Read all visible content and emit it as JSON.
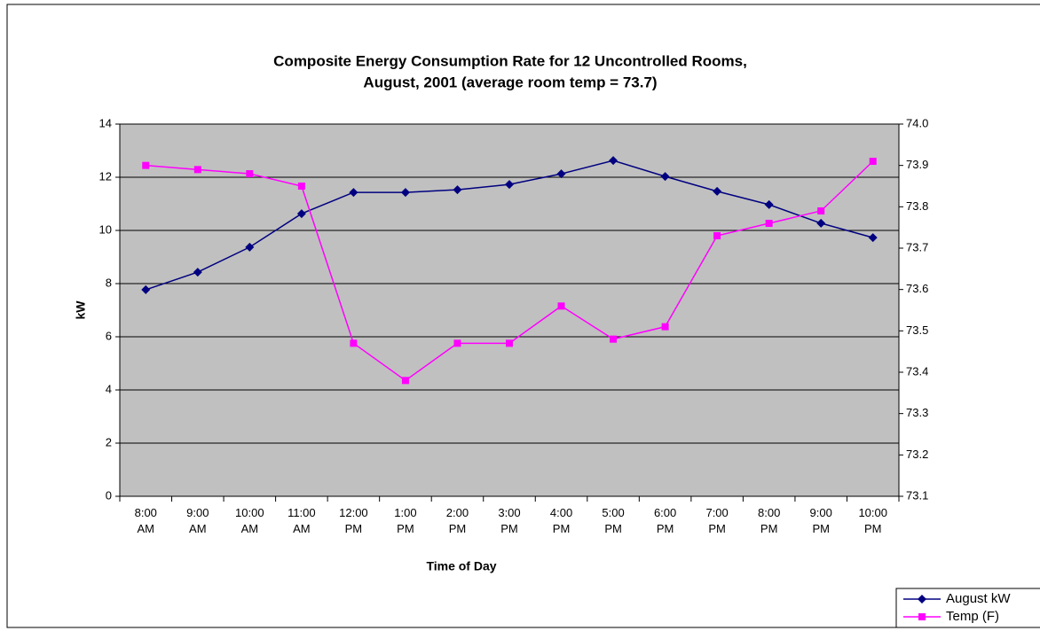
{
  "chart_data": {
    "type": "line",
    "title": [
      "Composite Energy Consumption Rate for 12 Uncontrolled Rooms,",
      "August, 2001 (average room temp = 73.7)"
    ],
    "x_label": "Time of Day",
    "y_label": "kW",
    "categories": [
      "8:00 AM",
      "9:00 AM",
      "10:00 AM",
      "11:00 AM",
      "12:00 PM",
      "1:00 PM",
      "2:00 PM",
      "3:00 PM",
      "4:00 PM",
      "5:00 PM",
      "6:00 PM",
      "7:00 PM",
      "8:00 PM",
      "9:00 PM",
      "10:00 PM"
    ],
    "series": [
      {
        "name": "August kW",
        "color": "#000080",
        "marker": "diamond",
        "values": [
          7.77,
          8.43,
          9.37,
          10.63,
          11.43,
          11.43,
          11.53,
          11.73,
          12.13,
          12.63,
          12.03,
          11.47,
          10.97,
          10.27,
          9.73
        ]
      },
      {
        "name": "Temp (F)",
        "color": "#ff00ff",
        "marker": "square",
        "axis": "y2",
        "values": [
          73.9,
          73.89,
          73.88,
          73.85,
          73.47,
          73.38,
          73.47,
          73.47,
          73.56,
          73.48,
          73.51,
          73.73,
          73.76,
          73.79,
          73.91
        ]
      }
    ],
    "ylim": [
      0,
      14
    ],
    "yticks": [
      0,
      2,
      4,
      6,
      8,
      10,
      12,
      14
    ],
    "y2lim": [
      73.1,
      74.0
    ],
    "y2ticks": [
      73.1,
      73.2,
      73.3,
      73.4,
      73.5,
      73.6,
      73.7,
      73.8,
      73.9,
      {
        "value": 74.0,
        "label": "74.0"
      }
    ],
    "grid": true,
    "plot_background": "#c0c0c0",
    "legend": "bottom-right"
  }
}
